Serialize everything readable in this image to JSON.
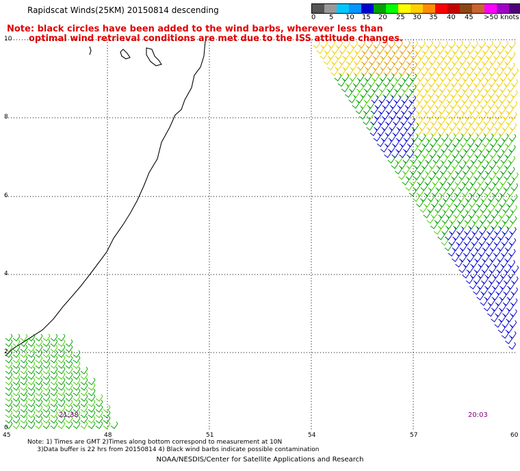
{
  "header": {
    "title": "Rapidscat Winds(25KM) 20150814 descending",
    "note_line1": "Note: black circles have been added to the wind barbs, wherever less than",
    "note_line2": "optimal wind retrieval conditions are met due to the ISS attitude changes."
  },
  "legend": {
    "unit": ">50 knots",
    "tick_labels": [
      "0",
      "5",
      "10",
      "15",
      "20",
      "25",
      "30",
      "35",
      "40",
      "45"
    ],
    "colors": [
      "#555555",
      "#999999",
      "#00c8ff",
      "#0096ff",
      "#0000d0",
      "#00a000",
      "#00ff00",
      "#ffff00",
      "#ffd000",
      "#ff8c00",
      "#ff0000",
      "#c80000",
      "#8b4513",
      "#c86432",
      "#ff00ff",
      "#a000c8",
      "#500078"
    ]
  },
  "axes": {
    "y_labels": [
      "10",
      "8",
      "6",
      "4",
      "2",
      "0"
    ],
    "x_labels": [
      "45",
      "48",
      "51",
      "54",
      "57",
      "60"
    ]
  },
  "swath_times": [
    "21:38",
    "20:03"
  ],
  "footnotes": {
    "line1": "Note: 1) Times are GMT 2)Times along bottom correspond to measurement at 10N",
    "line2": "     3)Data buffer is 22 hrs from 20150814 4) Black wind barbs indicate possible contamination"
  },
  "credit": "NOAA/NESDIS/Center for Satellite Applications and Research",
  "colors": {
    "note_red": "#e00000",
    "barb_green": "#00a000",
    "barb_lightgreen": "#44cc00",
    "barb_blue": "#0000d0",
    "barb_yellow": "#f0d000",
    "barb_orange": "#e8a000",
    "time_purple": "#800080"
  }
}
